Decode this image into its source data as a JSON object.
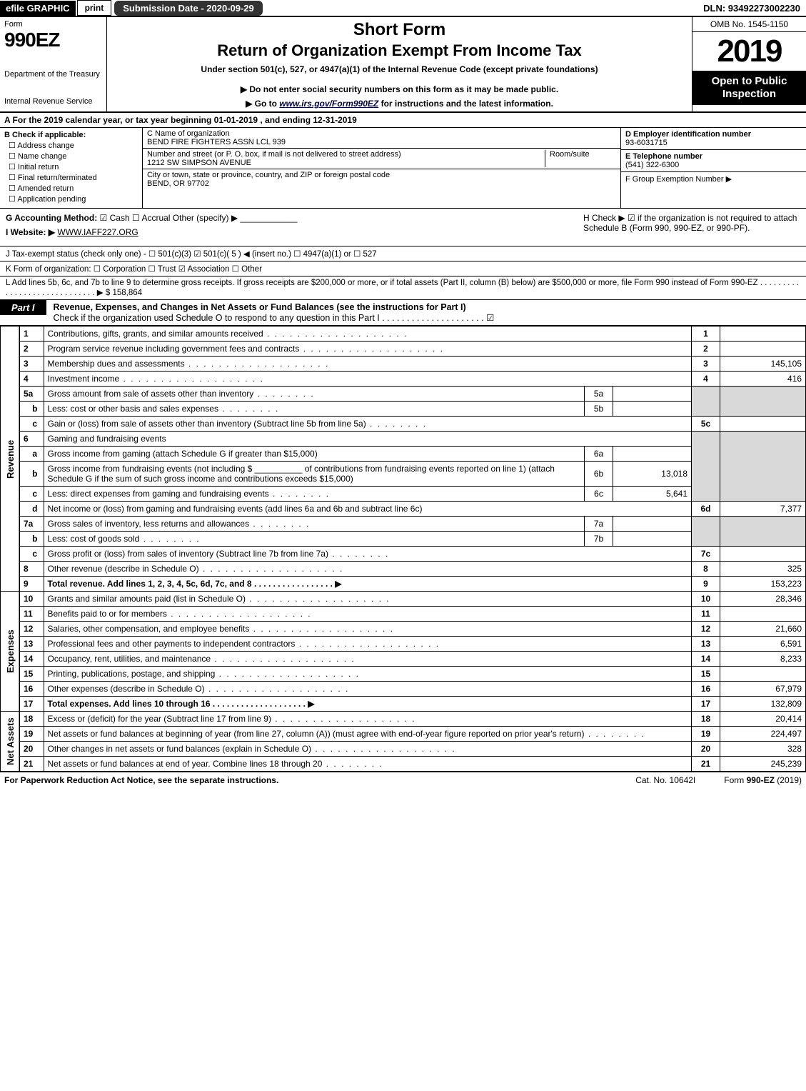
{
  "topbar": {
    "efile": "efile GRAPHIC",
    "print": "print",
    "submission_label": "Submission Date - 2020-09-29",
    "dln": "DLN: 93492273002230"
  },
  "header": {
    "form_word": "Form",
    "form_number": "990EZ",
    "department": "Department of the Treasury",
    "irs": "Internal Revenue Service",
    "short_form": "Short Form",
    "return_title": "Return of Organization Exempt From Income Tax",
    "under_section": "Under section 501(c), 527, or 4947(a)(1) of the Internal Revenue Code (except private foundations)",
    "do_not": "▶ Do not enter social security numbers on this form as it may be made public.",
    "goto_pre": "▶ Go to ",
    "goto_link": "www.irs.gov/Form990EZ",
    "goto_post": " for instructions and the latest information.",
    "omb": "OMB No. 1545-1150",
    "year": "2019",
    "open": "Open to Public Inspection"
  },
  "line_a": "A For the 2019 calendar year, or tax year beginning 01-01-2019 , and ending 12-31-2019",
  "box_b": {
    "title": "B Check if applicable:",
    "opts": [
      "Address change",
      "Name change",
      "Initial return",
      "Final return/terminated",
      "Amended return",
      "Application pending"
    ]
  },
  "box_c": {
    "name_label": "C Name of organization",
    "name": "BEND FIRE FIGHTERS ASSN LCL 939",
    "addr_label": "Number and street (or P. O. box, if mail is not delivered to street address)",
    "addr": "1212 SW SIMPSON AVENUE",
    "room_label": "Room/suite",
    "city_label": "City or town, state or province, country, and ZIP or foreign postal code",
    "city": "BEND, OR  97702"
  },
  "box_d": {
    "ein_label": "D Employer identification number",
    "ein": "93-6031715",
    "tel_label": "E Telephone number",
    "tel": "(541) 322-6300",
    "grp_label": "F Group Exemption Number  ▶"
  },
  "g": {
    "label": "G Accounting Method:",
    "cash": "Cash",
    "accrual": "Accrual",
    "other": "Other (specify) ▶"
  },
  "h": "H  Check ▶ ☑ if the organization is not required to attach Schedule B (Form 990, 990-EZ, or 990-PF).",
  "i": {
    "label": "I Website: ▶",
    "value": "WWW.IAFF227.ORG"
  },
  "j": "J Tax-exempt status (check only one) - ☐ 501(c)(3)  ☑ 501(c)( 5 ) ◀ (insert no.)  ☐ 4947(a)(1) or  ☐ 527",
  "k": "K Form of organization:   ☐ Corporation   ☐ Trust   ☑ Association   ☐ Other",
  "l": {
    "text": "L Add lines 5b, 6c, and 7b to line 9 to determine gross receipts. If gross receipts are $200,000 or more, or if total assets (Part II, column (B) below) are $500,000 or more, file Form 990 instead of Form 990-EZ .  .  .  .  .  .  .  .  .  .  .  .  .  .  .  .  .  .  .  .  .  .  .  .  .  .  .  .  .  ▶ $",
    "amount": "158,864"
  },
  "part1": {
    "tab": "Part I",
    "title": "Revenue, Expenses, and Changes in Net Assets or Fund Balances (see the instructions for Part I)",
    "check_line": "Check if the organization used Schedule O to respond to any question in this Part I .  .  .  .  .  .  .  .  .  .  .  .  .  .  .  .  .  .  .  .  .  ☑"
  },
  "revenue_label": "Revenue",
  "expenses_label": "Expenses",
  "netassets_label": "Net Assets",
  "rows": {
    "r1": {
      "n": "1",
      "d": "Contributions, gifts, grants, and similar amounts received",
      "c": "1",
      "v": ""
    },
    "r2": {
      "n": "2",
      "d": "Program service revenue including government fees and contracts",
      "c": "2",
      "v": ""
    },
    "r3": {
      "n": "3",
      "d": "Membership dues and assessments",
      "c": "3",
      "v": "145,105"
    },
    "r4": {
      "n": "4",
      "d": "Investment income",
      "c": "4",
      "v": "416"
    },
    "r5a": {
      "n": "5a",
      "d": "Gross amount from sale of assets other than inventory",
      "ic": "5a",
      "iv": ""
    },
    "r5b": {
      "n": "b",
      "d": "Less: cost or other basis and sales expenses",
      "ic": "5b",
      "iv": ""
    },
    "r5c": {
      "n": "c",
      "d": "Gain or (loss) from sale of assets other than inventory (Subtract line 5b from line 5a)",
      "c": "5c",
      "v": ""
    },
    "r6": {
      "n": "6",
      "d": "Gaming and fundraising events"
    },
    "r6a": {
      "n": "a",
      "d": "Gross income from gaming (attach Schedule G if greater than $15,000)",
      "ic": "6a",
      "iv": ""
    },
    "r6b": {
      "n": "b",
      "d": "Gross income from fundraising events (not including $ __________ of contributions from fundraising events reported on line 1) (attach Schedule G if the sum of such gross income and contributions exceeds $15,000)",
      "ic": "6b",
      "iv": "13,018"
    },
    "r6c": {
      "n": "c",
      "d": "Less: direct expenses from gaming and fundraising events",
      "ic": "6c",
      "iv": "5,641"
    },
    "r6d": {
      "n": "d",
      "d": "Net income or (loss) from gaming and fundraising events (add lines 6a and 6b and subtract line 6c)",
      "c": "6d",
      "v": "7,377"
    },
    "r7a": {
      "n": "7a",
      "d": "Gross sales of inventory, less returns and allowances",
      "ic": "7a",
      "iv": ""
    },
    "r7b": {
      "n": "b",
      "d": "Less: cost of goods sold",
      "ic": "7b",
      "iv": ""
    },
    "r7c": {
      "n": "c",
      "d": "Gross profit or (loss) from sales of inventory (Subtract line 7b from line 7a)",
      "c": "7c",
      "v": ""
    },
    "r8": {
      "n": "8",
      "d": "Other revenue (describe in Schedule O)",
      "c": "8",
      "v": "325"
    },
    "r9": {
      "n": "9",
      "d": "Total revenue. Add lines 1, 2, 3, 4, 5c, 6d, 7c, and 8   .  .  .  .  .  .  .  .  .  .  .  .  .  .  .  .  .  ▶",
      "c": "9",
      "v": "153,223",
      "bold": true
    },
    "r10": {
      "n": "10",
      "d": "Grants and similar amounts paid (list in Schedule O)",
      "c": "10",
      "v": "28,346"
    },
    "r11": {
      "n": "11",
      "d": "Benefits paid to or for members",
      "c": "11",
      "v": ""
    },
    "r12": {
      "n": "12",
      "d": "Salaries, other compensation, and employee benefits",
      "c": "12",
      "v": "21,660"
    },
    "r13": {
      "n": "13",
      "d": "Professional fees and other payments to independent contractors",
      "c": "13",
      "v": "6,591"
    },
    "r14": {
      "n": "14",
      "d": "Occupancy, rent, utilities, and maintenance",
      "c": "14",
      "v": "8,233"
    },
    "r15": {
      "n": "15",
      "d": "Printing, publications, postage, and shipping",
      "c": "15",
      "v": ""
    },
    "r16": {
      "n": "16",
      "d": "Other expenses (describe in Schedule O)",
      "c": "16",
      "v": "67,979"
    },
    "r17": {
      "n": "17",
      "d": "Total expenses. Add lines 10 through 16   .  .  .  .  .  .  .  .  .  .  .  .  .  .  .  .  .  .  .  .  ▶",
      "c": "17",
      "v": "132,809",
      "bold": true
    },
    "r18": {
      "n": "18",
      "d": "Excess or (deficit) for the year (Subtract line 17 from line 9)",
      "c": "18",
      "v": "20,414"
    },
    "r19": {
      "n": "19",
      "d": "Net assets or fund balances at beginning of year (from line 27, column (A)) (must agree with end-of-year figure reported on prior year's return)",
      "c": "19",
      "v": "224,497"
    },
    "r20": {
      "n": "20",
      "d": "Other changes in net assets or fund balances (explain in Schedule O)",
      "c": "20",
      "v": "328"
    },
    "r21": {
      "n": "21",
      "d": "Net assets or fund balances at end of year. Combine lines 18 through 20",
      "c": "21",
      "v": "245,239"
    }
  },
  "footer": {
    "left": "For Paperwork Reduction Act Notice, see the separate instructions.",
    "mid": "Cat. No. 10642I",
    "right_pre": "Form ",
    "right_form": "990-EZ",
    "right_post": " (2019)"
  }
}
